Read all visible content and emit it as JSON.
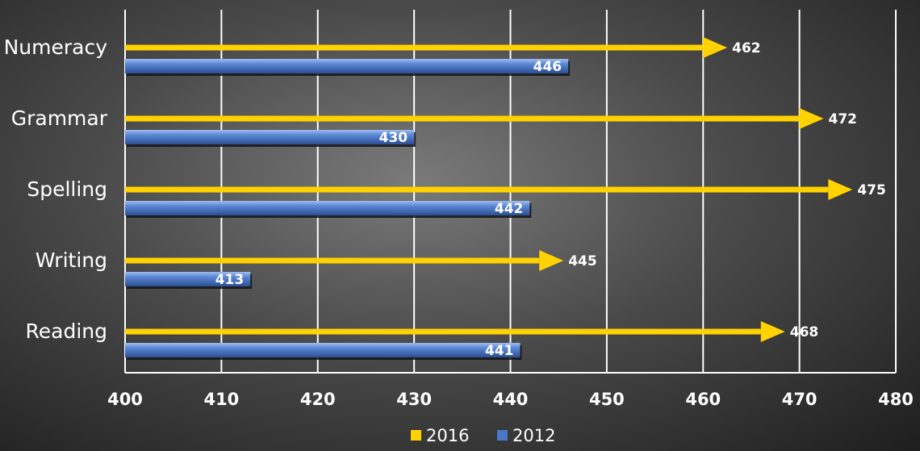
{
  "chart_data": {
    "type": "bar",
    "orientation": "horizontal",
    "categories": [
      "Numeracy",
      "Grammar",
      "Spelling",
      "Writing",
      "Reading"
    ],
    "series": [
      {
        "name": "2016",
        "color": "#ffd200",
        "style": "arrow",
        "values": [
          462,
          472,
          475,
          445,
          468
        ]
      },
      {
        "name": "2012",
        "color": "#4a78c8",
        "style": "bar",
        "values": [
          446,
          430,
          442,
          413,
          441
        ]
      }
    ],
    "xlim": [
      400,
      480
    ],
    "xticks": [
      "400",
      "410",
      "420",
      "430",
      "440",
      "450",
      "460",
      "470",
      "480"
    ],
    "grid": true,
    "legend": "bottom-center",
    "title": "",
    "xlabel": "",
    "ylabel": ""
  }
}
